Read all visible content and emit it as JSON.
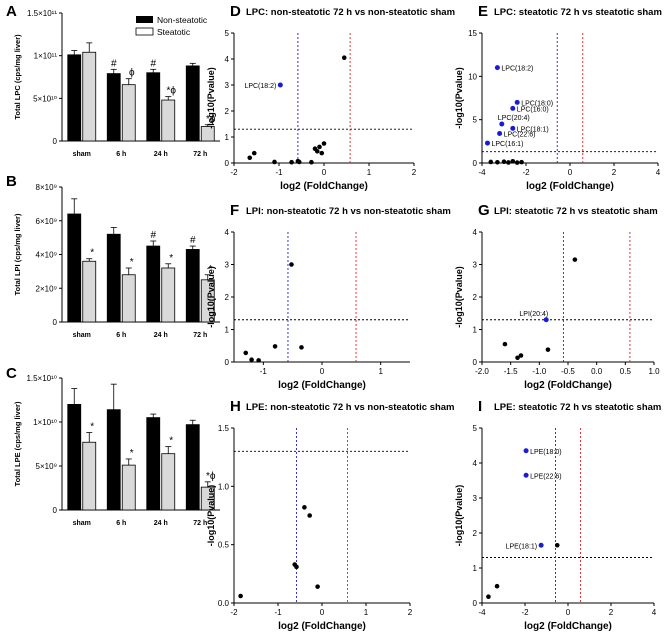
{
  "figure": {
    "legend": {
      "non_steatotic": "Non-steatotic",
      "steatotic": "Steatotic"
    },
    "colors": {
      "non_steatotic": "#000000",
      "steatotic": "#d9d9d9",
      "up_line": "#e02020",
      "down_line": "#2020d0",
      "highlight": "#1a1adb",
      "point": "#000000"
    }
  },
  "chart_data": [
    {
      "id": "A",
      "type": "bar",
      "panel_label": "A",
      "title": "",
      "ylabel": "Total LPC (cps/mg liver)",
      "categories": [
        "sham",
        "6 h",
        "24 h",
        "72 h"
      ],
      "ylim": [
        0,
        150000000000
      ],
      "yticks": [
        0,
        50000000000,
        100000000000,
        150000000000
      ],
      "ytick_labels": [
        "0",
        "5×10¹⁰",
        "1×10¹¹",
        "1.5×10¹¹"
      ],
      "series": [
        {
          "name": "Non-steatotic",
          "values": [
            101000000000,
            79000000000,
            80000000000,
            88000000000
          ],
          "errors": [
            5000000000,
            5000000000,
            4000000000,
            3000000000
          ]
        },
        {
          "name": "Steatotic",
          "values": [
            104000000000,
            66000000000,
            48000000000,
            17000000000
          ],
          "errors": [
            11000000000,
            7000000000,
            4000000000,
            2000000000
          ]
        }
      ],
      "annotations": [
        [
          "",
          ""
        ],
        [
          "#",
          "ϕ"
        ],
        [
          "#",
          "*ϕ"
        ],
        [
          "",
          "*ϕ"
        ]
      ]
    },
    {
      "id": "B",
      "type": "bar",
      "panel_label": "B",
      "title": "",
      "ylabel": "Total LPI (cps/mg liver)",
      "categories": [
        "sham",
        "6 h",
        "24 h",
        "72 h"
      ],
      "ylim": [
        0,
        8000000000
      ],
      "yticks": [
        0,
        2000000000,
        4000000000,
        6000000000,
        8000000000
      ],
      "ytick_labels": [
        "0",
        "2×10⁹",
        "4×10⁹",
        "6×10⁹",
        "8×10⁹"
      ],
      "series": [
        {
          "name": "Non-steatotic",
          "values": [
            6400000000,
            5200000000,
            4500000000,
            4300000000
          ],
          "errors": [
            900000000,
            400000000,
            300000000,
            200000000
          ]
        },
        {
          "name": "Steatotic",
          "values": [
            3600000000,
            2800000000,
            3200000000,
            2500000000
          ],
          "errors": [
            150000000,
            400000000,
            250000000,
            300000000
          ]
        }
      ],
      "annotations": [
        [
          "",
          "*"
        ],
        [
          "",
          "*"
        ],
        [
          "#",
          "*"
        ],
        [
          "#",
          "*"
        ]
      ]
    },
    {
      "id": "C",
      "type": "bar",
      "panel_label": "C",
      "title": "",
      "ylabel": "Total LPE (cps/mg liver)",
      "categories": [
        "sham",
        "6 h",
        "24 h",
        "72 h"
      ],
      "ylim": [
        0,
        15000000000
      ],
      "yticks": [
        0,
        5000000000,
        10000000000,
        15000000000
      ],
      "ytick_labels": [
        "0",
        "5×10⁹",
        "1×10¹⁰",
        "1.5×10¹⁰"
      ],
      "series": [
        {
          "name": "Non-steatotic",
          "values": [
            12000000000,
            11400000000,
            10500000000,
            9700000000
          ],
          "errors": [
            1800000000,
            2900000000,
            400000000,
            500000000
          ]
        },
        {
          "name": "Steatotic",
          "values": [
            7700000000,
            5100000000,
            6400000000,
            2600000000
          ],
          "errors": [
            1100000000,
            700000000,
            800000000,
            600000000
          ]
        }
      ],
      "annotations": [
        [
          "",
          "*"
        ],
        [
          "",
          "*"
        ],
        [
          "",
          "*"
        ],
        [
          "",
          "*ϕ"
        ]
      ]
    },
    {
      "id": "D",
      "type": "scatter",
      "panel_label": "D",
      "title": "LPC: non-steatotic 72 h vs non-steatotic sham",
      "xlabel": "log2 (FoldChange)",
      "ylabel": "-log10(Pvalue)",
      "xlim": [
        -2,
        2
      ],
      "ylim": [
        0,
        5
      ],
      "xticks": [
        -2,
        -1,
        0,
        1,
        2
      ],
      "yticks": [
        0,
        1,
        2,
        3,
        4,
        5
      ],
      "xtick_labels": [
        "-2",
        "-1",
        "0",
        "1",
        "2"
      ],
      "ytick_labels": [
        "0",
        "1",
        "2",
        "3",
        "4",
        "5"
      ],
      "vlines": [
        -0.58,
        0.58
      ],
      "hline": 1.3,
      "points": [
        [
          -1.65,
          0.2
        ],
        [
          -1.55,
          0.38
        ],
        [
          -1.1,
          0.04
        ],
        [
          -0.72,
          0.03
        ],
        [
          -0.58,
          0.07
        ],
        [
          -0.55,
          0.04
        ],
        [
          -0.28,
          0.03
        ],
        [
          -0.2,
          0.55
        ],
        [
          -0.15,
          0.45
        ],
        [
          -0.1,
          0.62
        ],
        [
          -0.05,
          0.38
        ],
        [
          0.0,
          0.75
        ],
        [
          0.45,
          4.05
        ]
      ],
      "highlighted": [
        {
          "x": -0.97,
          "y": 3.0,
          "label": "LPC(18:2)",
          "side": "left"
        }
      ]
    },
    {
      "id": "E",
      "type": "scatter",
      "panel_label": "E",
      "title": "LPC: steatotic 72 h vs steatotic sham",
      "xlabel": "log2 (FoldChange)",
      "ylabel": "-log10(Pvalue)",
      "xlim": [
        -4,
        4
      ],
      "ylim": [
        0,
        15
      ],
      "xticks": [
        -4,
        -2,
        0,
        2,
        4
      ],
      "yticks": [
        0,
        5,
        10,
        15
      ],
      "xtick_labels": [
        "-4",
        "-2",
        "0",
        "2",
        "4"
      ],
      "ytick_labels": [
        "0",
        "5",
        "10",
        "15"
      ],
      "vlines": [
        -0.58,
        0.58
      ],
      "hline": 1.3,
      "points": [
        [
          -3.6,
          0.12
        ],
        [
          -3.3,
          0.08
        ],
        [
          -3.0,
          0.15
        ],
        [
          -2.8,
          0.06
        ],
        [
          -2.6,
          0.2
        ],
        [
          -2.4,
          0.05
        ],
        [
          -2.2,
          0.1
        ]
      ],
      "highlighted": [
        {
          "x": -3.3,
          "y": 11.0,
          "label": "LPC(18:2)",
          "side": "right"
        },
        {
          "x": -2.4,
          "y": 7.0,
          "label": "LPC(18:0)",
          "side": "right"
        },
        {
          "x": -2.6,
          "y": 6.3,
          "label": "LPC(16:0)",
          "side": "right"
        },
        {
          "x": -3.1,
          "y": 4.5,
          "label": "LPC(20:4)",
          "side": "above"
        },
        {
          "x": -2.6,
          "y": 4.0,
          "label": "LPC(18:1)",
          "side": "right"
        },
        {
          "x": -3.2,
          "y": 3.4,
          "label": "LPC(22:6)",
          "side": "right"
        },
        {
          "x": -3.75,
          "y": 2.3,
          "label": "LPC(16:1)",
          "side": "right"
        }
      ]
    },
    {
      "id": "F",
      "type": "scatter",
      "panel_label": "F",
      "title": "LPI: non-steatotic 72 h vs non-steatotic sham",
      "xlabel": "log2 (FoldChange)",
      "ylabel": "-log10(Pvalue)",
      "xlim": [
        -1.5,
        1.5
      ],
      "ylim": [
        0,
        4
      ],
      "xticks": [
        -1,
        0,
        1
      ],
      "yticks": [
        0,
        1,
        2,
        3,
        4
      ],
      "xtick_labels": [
        "-1",
        "0",
        "1"
      ],
      "ytick_labels": [
        "0",
        "1",
        "2",
        "3",
        "4"
      ],
      "vlines": [
        -0.58,
        0.58
      ],
      "hline": 1.3,
      "points": [
        [
          -1.3,
          0.28
        ],
        [
          -1.2,
          0.07
        ],
        [
          -1.08,
          0.05
        ],
        [
          -0.8,
          0.48
        ],
        [
          -0.52,
          3.0
        ],
        [
          -0.35,
          0.45
        ]
      ],
      "highlighted": []
    },
    {
      "id": "G",
      "type": "scatter",
      "panel_label": "G",
      "title": "LPI: steatotic 72 h vs steatotic sham",
      "xlabel": "log2 (FoldChange)",
      "ylabel": "-log10(Pvalue)",
      "xlim": [
        -2.0,
        1.0
      ],
      "ylim": [
        0,
        4
      ],
      "xticks": [
        -2.0,
        -1.5,
        -1.0,
        -0.5,
        0.0,
        0.5,
        1.0
      ],
      "yticks": [
        0,
        1,
        2,
        3,
        4
      ],
      "xtick_labels": [
        "-2.0",
        "-1.5",
        "-1.0",
        "-0.5",
        "0.0",
        "0.5",
        "1.0"
      ],
      "ytick_labels": [
        "0",
        "1",
        "2",
        "3",
        "4"
      ],
      "vlines": [
        -0.58,
        0.58
      ],
      "hline": 1.3,
      "points": [
        [
          -1.6,
          0.55
        ],
        [
          -1.38,
          0.13
        ],
        [
          -1.32,
          0.2
        ],
        [
          -0.85,
          0.38
        ],
        [
          -0.38,
          3.15
        ]
      ],
      "highlighted": [
        {
          "x": -0.88,
          "y": 1.3,
          "label": "LPI(20:4)",
          "side": "above-left"
        }
      ]
    },
    {
      "id": "H",
      "type": "scatter",
      "panel_label": "H",
      "title": "LPE: non-steatotic 72 h vs non-steatotic sham",
      "xlabel": "log2 (FoldChange)",
      "ylabel": "-log10(Pvalue)",
      "xlim": [
        -2,
        2
      ],
      "ylim": [
        0,
        1.5
      ],
      "xticks": [
        -2,
        -1,
        0,
        1,
        2
      ],
      "yticks": [
        0.0,
        0.5,
        1.0,
        1.5
      ],
      "xtick_labels": [
        "-2",
        "-1",
        "0",
        "1",
        "2"
      ],
      "ytick_labels": [
        "0.0",
        "0.5",
        "1.0",
        "1.5"
      ],
      "vlines": [
        -0.58,
        0.58
      ],
      "hline": 1.3,
      "points": [
        [
          -1.85,
          0.06
        ],
        [
          -0.62,
          0.33
        ],
        [
          -0.58,
          0.31
        ],
        [
          -0.4,
          0.82
        ],
        [
          -0.28,
          0.75
        ],
        [
          -0.1,
          0.14
        ]
      ],
      "highlighted": []
    },
    {
      "id": "I",
      "type": "scatter",
      "panel_label": "I",
      "title": "LPE: steatotic 72 h vs steatotic sham",
      "xlabel": "log2 (FoldChange)",
      "ylabel": "-log10(Pvalue)",
      "xlim": [
        -4,
        4
      ],
      "ylim": [
        0,
        5
      ],
      "xticks": [
        -4,
        -2,
        0,
        2,
        4
      ],
      "yticks": [
        0,
        1,
        2,
        3,
        4,
        5
      ],
      "xtick_labels": [
        "-4",
        "-2",
        "0",
        "2",
        "4"
      ],
      "ytick_labels": [
        "0",
        "1",
        "2",
        "3",
        "4",
        "5"
      ],
      "vlines": [
        -0.58,
        0.58
      ],
      "hline": 1.3,
      "points": [
        [
          -3.7,
          0.18
        ],
        [
          -3.3,
          0.48
        ],
        [
          -0.5,
          1.65
        ]
      ],
      "highlighted": [
        {
          "x": -1.95,
          "y": 4.35,
          "label": "LPE(18:0)",
          "side": "right"
        },
        {
          "x": -1.95,
          "y": 3.65,
          "label": "LPE(22:6)",
          "side": "right"
        },
        {
          "x": -1.25,
          "y": 1.65,
          "label": "LPE(18:1)",
          "side": "left"
        }
      ]
    }
  ]
}
